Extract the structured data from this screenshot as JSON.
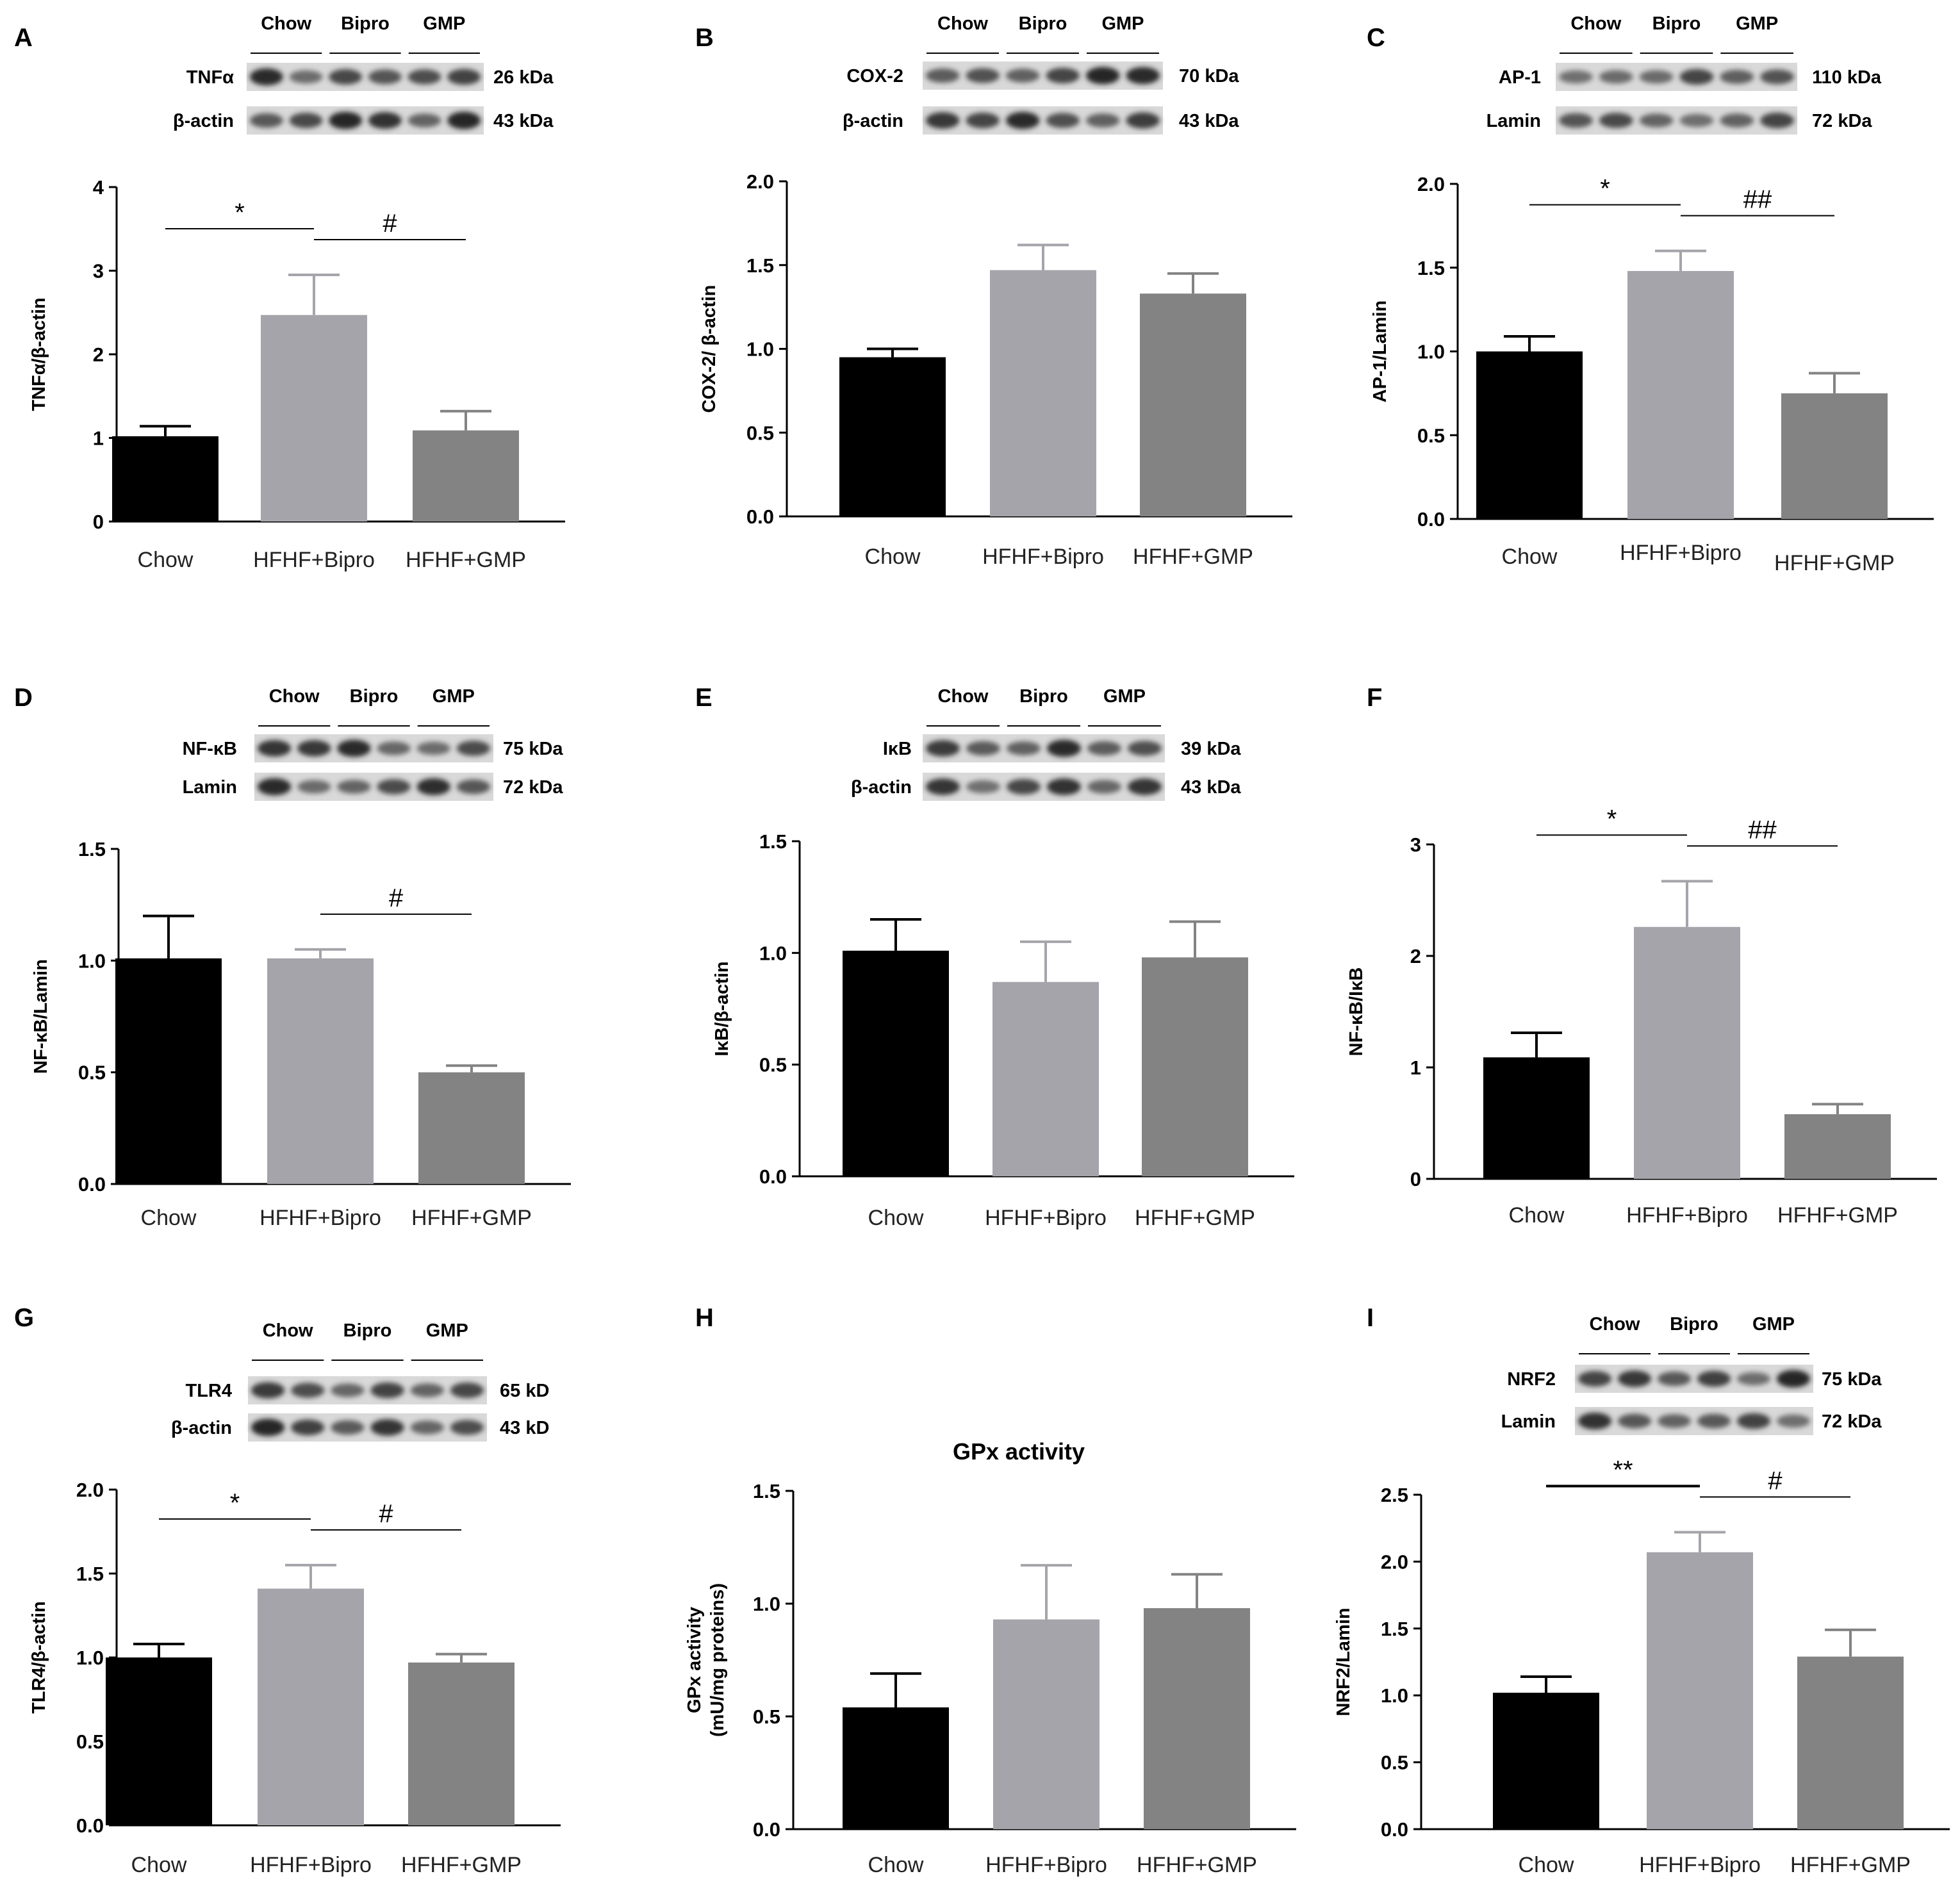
{
  "figure": {
    "colors": {
      "chow": "#000000",
      "bipro": "#a4a4aa",
      "gmp": "#838383",
      "axis": "#000000"
    }
  },
  "chart_data": [
    {
      "id": "A",
      "type": "bar",
      "title": "",
      "categories": [
        "Chow",
        "HFHF+Bipro",
        "HFHF+GMP"
      ],
      "values": [
        1.02,
        2.47,
        1.09
      ],
      "errors": [
        0.12,
        0.48,
        0.23
      ],
      "ylabel": "TNFα/β-actin",
      "ylim": [
        0,
        4
      ],
      "yticks": [
        "0",
        "1",
        "2",
        "3",
        "4"
      ],
      "significance": [
        {
          "from": 0,
          "to": 1,
          "label": "*"
        },
        {
          "from": 1,
          "to": 2,
          "label": "#"
        }
      ],
      "blot": {
        "groups": [
          "Chow",
          "Bipro",
          "GMP"
        ],
        "rows": [
          {
            "protein": "TNFα",
            "size": "26 kDa"
          },
          {
            "protein": "β-actin",
            "size": "43 kDa"
          }
        ]
      }
    },
    {
      "id": "B",
      "type": "bar",
      "title": "",
      "categories": [
        "Chow",
        "HFHF+Bipro",
        "HFHF+GMP"
      ],
      "values": [
        0.95,
        1.47,
        1.33
      ],
      "errors": [
        0.05,
        0.15,
        0.12
      ],
      "ylabel": "COX-2/ β-actin",
      "ylim": [
        0,
        2
      ],
      "yticks": [
        "0.0",
        "0.5",
        "1.0",
        "1.5",
        "2.0"
      ],
      "significance": [],
      "blot": {
        "groups": [
          "Chow",
          "Bipro",
          "GMP"
        ],
        "rows": [
          {
            "protein": "COX-2",
            "size": "70 kDa"
          },
          {
            "protein": "β-actin",
            "size": "43 kDa"
          }
        ]
      }
    },
    {
      "id": "C",
      "type": "bar",
      "title": "",
      "categories": [
        "Chow",
        "HFHF+Bipro",
        "HFHF+GMP"
      ],
      "values": [
        1.0,
        1.48,
        0.75
      ],
      "errors": [
        0.09,
        0.12,
        0.12
      ],
      "ylabel": "AP-1/Lamin",
      "ylim": [
        0,
        2
      ],
      "yticks": [
        "0.0",
        "0.5",
        "1.0",
        "1.5",
        "2.0"
      ],
      "significance": [
        {
          "from": 0,
          "to": 1,
          "label": "*"
        },
        {
          "from": 1,
          "to": 2,
          "label": "##"
        }
      ],
      "blot": {
        "groups": [
          "Chow",
          "Bipro",
          "GMP"
        ],
        "rows": [
          {
            "protein": "AP-1",
            "size": "110 kDa"
          },
          {
            "protein": "Lamin",
            "size": "72 kDa"
          }
        ]
      }
    },
    {
      "id": "D",
      "type": "bar",
      "title": "",
      "categories": [
        "Chow",
        "HFHF+Bipro",
        "HFHF+GMP"
      ],
      "values": [
        1.01,
        1.01,
        0.5
      ],
      "errors": [
        0.19,
        0.04,
        0.03
      ],
      "ylabel": "NF-κB/Lamin",
      "ylim": [
        0,
        1.5
      ],
      "yticks": [
        "0.0",
        "0.5",
        "1.0",
        "1.5"
      ],
      "significance": [
        {
          "from": 1,
          "to": 2,
          "label": "#"
        }
      ],
      "blot": {
        "groups": [
          "Chow",
          "Bipro",
          "GMP"
        ],
        "rows": [
          {
            "protein": "NF-κB",
            "size": "75 kDa"
          },
          {
            "protein": "Lamin",
            "size": "72 kDa"
          }
        ]
      }
    },
    {
      "id": "E",
      "type": "bar",
      "title": "",
      "categories": [
        "Chow",
        "HFHF+Bipro",
        "HFHF+GMP"
      ],
      "values": [
        1.01,
        0.87,
        0.98
      ],
      "errors": [
        0.14,
        0.18,
        0.16
      ],
      "ylabel": "IκB/β-actin",
      "ylim": [
        0,
        1.5
      ],
      "yticks": [
        "0.0",
        "0.5",
        "1.0",
        "1.5"
      ],
      "significance": [],
      "blot": {
        "groups": [
          "Chow",
          "Bipro",
          "GMP"
        ],
        "rows": [
          {
            "protein": "IκB",
            "size": "39 kDa"
          },
          {
            "protein": "β-actin",
            "size": "43 kDa"
          }
        ]
      }
    },
    {
      "id": "F",
      "type": "bar",
      "title": "",
      "categories": [
        "Chow",
        "HFHF+Bipro",
        "HFHF+GMP"
      ],
      "values": [
        1.09,
        2.26,
        0.58
      ],
      "errors": [
        0.22,
        0.41,
        0.09
      ],
      "ylabel": "NF-κB/IκB",
      "ylim": [
        0,
        3
      ],
      "yticks": [
        "0",
        "1",
        "2",
        "3"
      ],
      "significance": [
        {
          "from": 0,
          "to": 1,
          "label": "*"
        },
        {
          "from": 1,
          "to": 2,
          "label": "##"
        }
      ],
      "blot": null
    },
    {
      "id": "G",
      "type": "bar",
      "title": "",
      "categories": [
        "Chow",
        "HFHF+Bipro",
        "HFHF+GMP"
      ],
      "values": [
        1.0,
        1.41,
        0.97
      ],
      "errors": [
        0.08,
        0.14,
        0.05
      ],
      "ylabel": "TLR4/β-actin",
      "ylim": [
        0,
        2
      ],
      "yticks": [
        "0.0",
        "0.5",
        "1.0",
        "1.5",
        "2.0"
      ],
      "significance": [
        {
          "from": 0,
          "to": 1,
          "label": "*"
        },
        {
          "from": 1,
          "to": 2,
          "label": "#"
        }
      ],
      "blot": {
        "groups": [
          "Chow",
          "Bipro",
          "GMP"
        ],
        "rows": [
          {
            "protein": "TLR4",
            "size": "65 kD"
          },
          {
            "protein": "β-actin",
            "size": "43 kD"
          }
        ]
      }
    },
    {
      "id": "H",
      "type": "bar",
      "title": "GPx activity",
      "categories": [
        "Chow",
        "HFHF+Bipro",
        "HFHF+GMP"
      ],
      "values": [
        0.54,
        0.93,
        0.98
      ],
      "errors": [
        0.15,
        0.24,
        0.15
      ],
      "ylabel": [
        "GPx activity",
        "(mU/mg proteins)"
      ],
      "ylim": [
        0,
        1.5
      ],
      "yticks": [
        "0.0",
        "0.5",
        "1.0",
        "1.5"
      ],
      "significance": [],
      "blot": null
    },
    {
      "id": "I",
      "type": "bar",
      "title": "",
      "categories": [
        "Chow",
        "HFHF+Bipro",
        "HFHF+GMP"
      ],
      "values": [
        1.02,
        2.07,
        1.29
      ],
      "errors": [
        0.12,
        0.15,
        0.2
      ],
      "ylabel": "NRF2/Lamin",
      "ylim": [
        0,
        2.5
      ],
      "yticks": [
        "0.0",
        "0.5",
        "1.0",
        "1.5",
        "2.0",
        "2.5"
      ],
      "significance": [
        {
          "from": 0,
          "to": 1,
          "label": "**",
          "thick": true
        },
        {
          "from": 1,
          "to": 2,
          "label": "#"
        }
      ],
      "blot": {
        "groups": [
          "Chow",
          "Bipro",
          "GMP"
        ],
        "rows": [
          {
            "protein": "NRF2",
            "size": "75 kDa"
          },
          {
            "protein": "Lamin",
            "size": "72 kDa"
          }
        ]
      }
    }
  ]
}
